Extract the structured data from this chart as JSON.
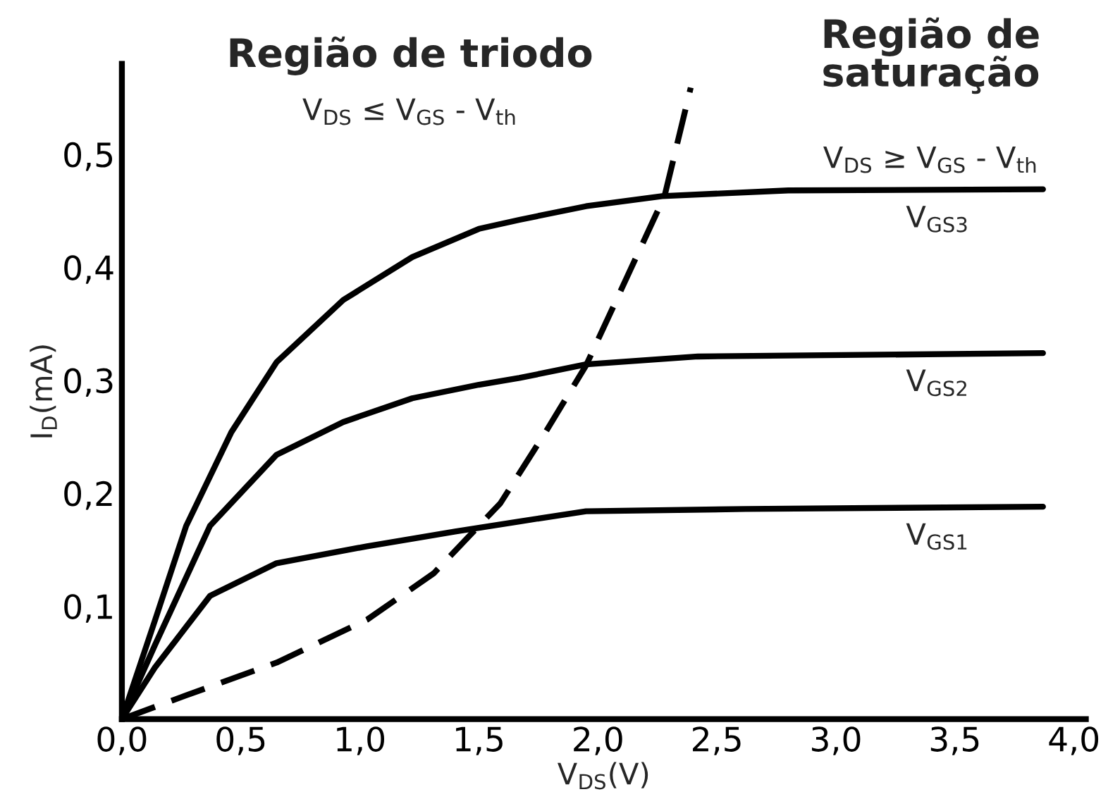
{
  "chart_data": {
    "type": "line",
    "xlabel": "V$_{DS}$(V)",
    "ylabel": "I$_{D}$(mA)",
    "annotations": [
      "Região de triodo",
      "V$_{DS}$ ≤ V$_{GS}$ - V$_{th}$",
      "Região de\nsaturação",
      "V$_{DS}$ ≥ V$_{GS}$ - V$_{th}$"
    ],
    "xlim": [
      0,
      4.05
    ],
    "ylim": [
      0,
      0.58
    ],
    "xticks": [
      {
        "value": 0,
        "label": "0,0"
      },
      {
        "value": 0.5,
        "label": "0,5"
      },
      {
        "value": 1.0,
        "label": "1,0"
      },
      {
        "value": 1.5,
        "label": "1,5"
      },
      {
        "value": 2.0,
        "label": "2,0"
      },
      {
        "value": 2.5,
        "label": "2,5"
      },
      {
        "value": 3.0,
        "label": "3,0"
      },
      {
        "value": 3.5,
        "label": "3,5"
      },
      {
        "value": 4.0,
        "label": "4,0"
      }
    ],
    "yticks": [
      {
        "value": 0.1,
        "label": "0,1"
      },
      {
        "value": 0.2,
        "label": "0,2"
      },
      {
        "value": 0.3,
        "label": "0,3"
      },
      {
        "value": 0.4,
        "label": "0,4"
      },
      {
        "value": 0.5,
        "label": "0,5"
      }
    ],
    "grid": false,
    "legend": false,
    "marker": "none",
    "series": [
      {
        "name": "V$_{GS3}$",
        "color": "#000000",
        "line_style": "solid",
        "x": [
          0,
          0.14,
          0.27,
          0.46,
          0.65,
          0.93,
          1.22,
          1.5,
          1.67,
          1.95,
          2.27,
          2.8,
          3.87
        ],
        "values": [
          0,
          0.088,
          0.171,
          0.254,
          0.316,
          0.371,
          0.409,
          0.434,
          0.442,
          0.454,
          0.463,
          0.468,
          0.469
        ]
      },
      {
        "name": "V$_{GS2}$",
        "color": "#000000",
        "line_style": "solid",
        "x": [
          0,
          0.14,
          0.37,
          0.65,
          0.93,
          1.22,
          1.5,
          1.67,
          1.95,
          2.42,
          3.87
        ],
        "values": [
          0,
          0.066,
          0.171,
          0.234,
          0.263,
          0.284,
          0.296,
          0.302,
          0.314,
          0.321,
          0.324
        ]
      },
      {
        "name": "V$_{GS1}$",
        "color": "#000000",
        "line_style": "solid",
        "x": [
          0,
          0.14,
          0.37,
          0.65,
          1.03,
          1.4,
          1.67,
          1.95,
          2.62,
          3.87
        ],
        "values": [
          0,
          0.046,
          0.109,
          0.138,
          0.153,
          0.166,
          0.175,
          0.184,
          0.186,
          0.188
        ]
      },
      {
        "color": "#000000",
        "line_style": "dashed",
        "x": [
          0,
          0.27,
          0.65,
          1.03,
          1.31,
          1.59,
          1.78,
          1.95,
          2.28,
          2.39
        ],
        "values": [
          0,
          0.021,
          0.05,
          0.088,
          0.129,
          0.191,
          0.254,
          0.313,
          0.463,
          0.559
        ]
      }
    ]
  }
}
